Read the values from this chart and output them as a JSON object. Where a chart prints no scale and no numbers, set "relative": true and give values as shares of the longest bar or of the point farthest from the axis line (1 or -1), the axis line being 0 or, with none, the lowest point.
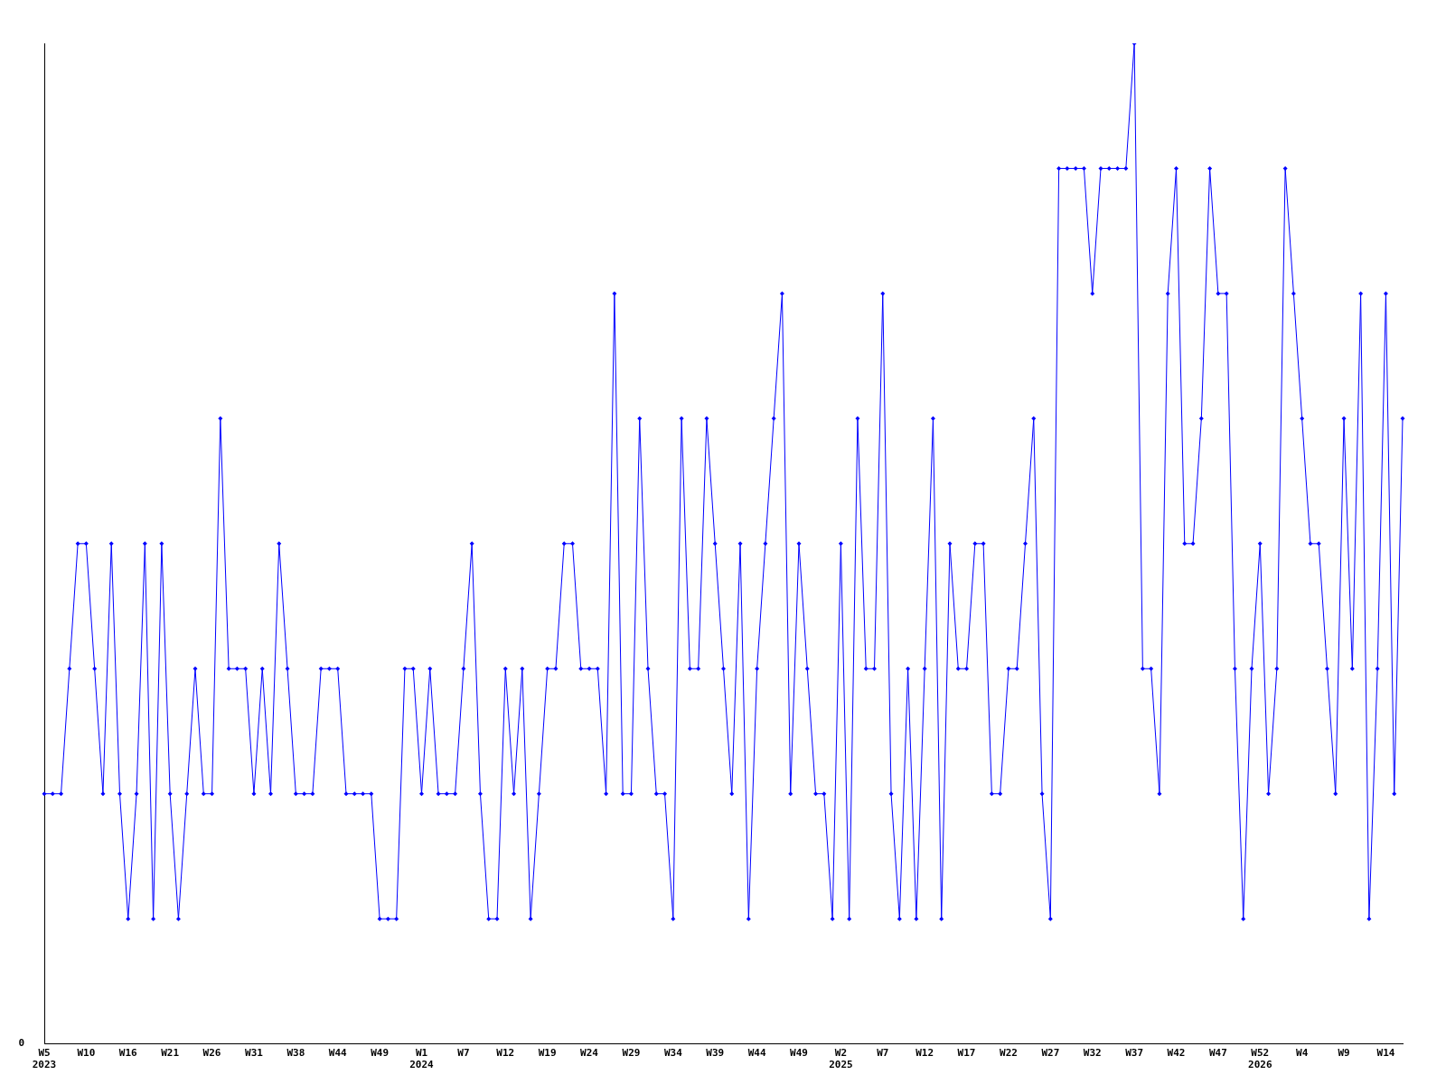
{
  "chart_data": {
    "type": "line",
    "relative": true,
    "annotations": [
      "0"
    ],
    "grid": false,
    "legend": false,
    "marker": "diamond",
    "line_style": "solid",
    "categories": [
      "W5\n2023",
      null,
      null,
      null,
      null,
      "W10",
      null,
      null,
      null,
      null,
      "W16",
      null,
      null,
      null,
      null,
      "W21",
      null,
      null,
      null,
      null,
      "W26",
      null,
      null,
      null,
      null,
      "W31",
      null,
      null,
      null,
      null,
      "W38",
      null,
      null,
      null,
      null,
      "W44",
      null,
      null,
      null,
      null,
      "W49",
      null,
      null,
      null,
      null,
      "W1\n2024",
      null,
      null,
      null,
      null,
      "W7",
      null,
      null,
      null,
      null,
      "W12",
      null,
      null,
      null,
      null,
      "W19",
      null,
      null,
      null,
      null,
      "W24",
      null,
      null,
      null,
      null,
      "W29",
      null,
      null,
      null,
      null,
      "W34",
      null,
      null,
      null,
      null,
      "W39",
      null,
      null,
      null,
      null,
      "W44",
      null,
      null,
      null,
      null,
      "W49",
      null,
      null,
      null,
      null,
      "W2\n2025",
      null,
      null,
      null,
      null,
      "W7",
      null,
      null,
      null,
      null,
      "W12",
      null,
      null,
      null,
      null,
      "W17",
      null,
      null,
      null,
      null,
      "W22",
      null,
      null,
      null,
      null,
      "W27",
      null,
      null,
      null,
      null,
      "W32",
      null,
      null,
      null,
      null,
      "W37",
      null,
      null,
      null,
      null,
      "W42",
      null,
      null,
      null,
      null,
      "W47",
      null,
      null,
      null,
      null,
      "W52\n2026",
      null,
      null,
      null,
      null,
      "W4",
      null,
      null,
      null,
      null,
      "W9",
      null,
      null,
      null,
      null,
      "W14",
      null,
      null
    ],
    "series": [
      {
        "color": "#0000ff",
        "values": [
          0.25,
          0.25,
          0.25,
          0.375,
          0.5,
          0.5,
          0.375,
          0.25,
          0.5,
          0.25,
          0.125,
          0.25,
          0.5,
          0.125,
          0.5,
          0.25,
          0.125,
          0.25,
          0.375,
          0.25,
          0.25,
          0.625,
          0.375,
          0.375,
          0.375,
          0.25,
          0.375,
          0.25,
          0.5,
          0.375,
          0.25,
          0.25,
          0.25,
          0.375,
          0.375,
          0.375,
          0.25,
          0.25,
          0.25,
          0.25,
          0.125,
          0.125,
          0.125,
          0.375,
          0.375,
          0.25,
          0.375,
          0.25,
          0.25,
          0.25,
          0.375,
          0.5,
          0.25,
          0.125,
          0.125,
          0.375,
          0.25,
          0.375,
          0.125,
          0.25,
          0.375,
          0.375,
          0.5,
          0.5,
          0.375,
          0.375,
          0.375,
          0.25,
          0.75,
          0.25,
          0.25,
          0.625,
          0.375,
          0.25,
          0.25,
          0.125,
          0.625,
          0.375,
          0.375,
          0.625,
          0.5,
          0.375,
          0.25,
          0.5,
          0.125,
          0.375,
          0.5,
          0.625,
          0.75,
          0.25,
          0.5,
          0.375,
          0.25,
          0.25,
          0.125,
          0.5,
          0.125,
          0.625,
          0.375,
          0.375,
          0.75,
          0.25,
          0.125,
          0.375,
          0.125,
          0.375,
          0.625,
          0.125,
          0.5,
          0.375,
          0.375,
          0.5,
          0.5,
          0.25,
          0.25,
          0.375,
          0.375,
          0.5,
          0.625,
          0.25,
          0.125,
          0.875,
          0.875,
          0.875,
          0.875,
          0.75,
          0.875,
          0.875,
          0.875,
          0.875,
          1,
          0.375,
          0.375,
          0.25,
          0.75,
          0.875,
          0.5,
          0.5,
          0.625,
          0.875,
          0.75,
          0.75,
          0.375,
          0.125,
          0.375,
          0.5,
          0.25,
          0.375,
          0.875,
          0.75,
          0.625,
          0.5,
          0.5,
          0.375,
          0.25,
          0.625,
          0.375,
          0.75,
          0.125,
          0.375,
          0.75,
          0.25,
          0.625
        ]
      }
    ]
  }
}
